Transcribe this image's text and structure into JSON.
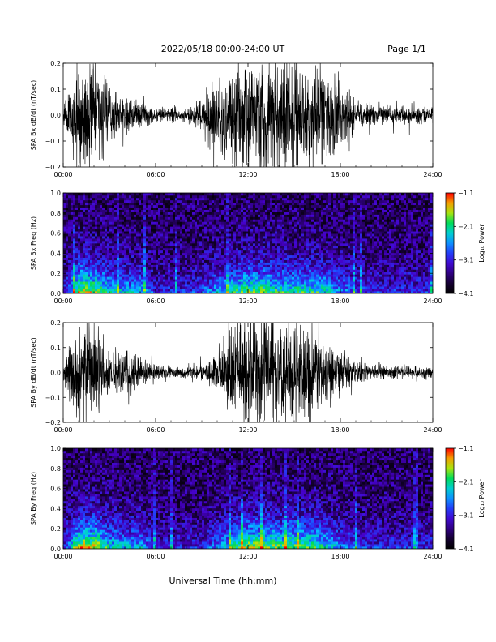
{
  "header": {
    "title": "2022/05/18  00:00-24:00 UT",
    "page": "Page 1/1"
  },
  "xaxis": {
    "label": "Universal Time (hh:mm)",
    "ticks": [
      "00:00",
      "06:00",
      "12:00",
      "18:00",
      "24:00"
    ]
  },
  "chart_data": [
    {
      "type": "line",
      "ylabel": "SPA Bx dB/dt (nT/sec)",
      "xlim": [
        0,
        24
      ],
      "ylim": [
        -0.2,
        0.2
      ],
      "yticks": [
        "0.2",
        "0.1",
        "0.0",
        "-0.1",
        "-0.2"
      ],
      "series": [
        {
          "x": [
            0,
            1,
            2,
            3,
            4,
            5,
            6,
            7,
            8,
            9,
            10,
            11,
            12,
            13,
            14,
            15,
            16,
            17,
            18,
            19,
            20,
            21,
            22,
            23,
            24
          ],
          "amplitude": [
            0.03,
            0.2,
            0.2,
            0.1,
            0.06,
            0.05,
            0.03,
            0.03,
            0.025,
            0.06,
            0.15,
            0.18,
            0.2,
            0.2,
            0.2,
            0.2,
            0.15,
            0.2,
            0.12,
            0.05,
            0.04,
            0.035,
            0.03,
            0.03,
            0.03
          ]
        }
      ]
    },
    {
      "type": "heatmap",
      "ylabel": "SPA Bx Freq (Hz)",
      "xlim": [
        0,
        24
      ],
      "ylim": [
        0,
        1.0
      ],
      "yticks": [
        "1.0",
        "0.8",
        "0.6",
        "0.4",
        "0.2",
        "0.0"
      ],
      "colorbar": {
        "label": "Log₁₀ Power",
        "ticks": [
          "-1.1",
          "-2.1",
          "-3.1",
          "-4.1"
        ],
        "range": [
          -4.1,
          -1.1
        ]
      },
      "activity": [
        0.15,
        0.55,
        0.5,
        0.35,
        0.3,
        0.3,
        0.15,
        0.15,
        0.15,
        0.2,
        0.3,
        0.4,
        0.45,
        0.45,
        0.4,
        0.4,
        0.4,
        0.35,
        0.25,
        0.2,
        0.15,
        0.15,
        0.15,
        0.15,
        0.15
      ]
    },
    {
      "type": "line",
      "ylabel": "SPA By dB/dt (nT/sec)",
      "xlim": [
        0,
        24
      ],
      "ylim": [
        -0.2,
        0.2
      ],
      "yticks": [
        "0.2",
        "0.1",
        "0.0",
        "-0.1",
        "-0.2"
      ],
      "series": [
        {
          "x": [
            0,
            1,
            2,
            3,
            4,
            5,
            6,
            7,
            8,
            9,
            10,
            11,
            12,
            13,
            14,
            15,
            16,
            17,
            18,
            19,
            20,
            21,
            22,
            23,
            24
          ],
          "amplitude": [
            0.03,
            0.2,
            0.18,
            0.08,
            0.08,
            0.06,
            0.03,
            0.02,
            0.02,
            0.03,
            0.06,
            0.2,
            0.2,
            0.2,
            0.2,
            0.2,
            0.18,
            0.12,
            0.08,
            0.05,
            0.03,
            0.03,
            0.025,
            0.025,
            0.02
          ]
        }
      ]
    },
    {
      "type": "heatmap",
      "ylabel": "SPA By Freq (Hz)",
      "xlim": [
        0,
        24
      ],
      "ylim": [
        0,
        1.0
      ],
      "yticks": [
        "1.0",
        "0.8",
        "0.6",
        "0.4",
        "0.2",
        "0.0"
      ],
      "colorbar": {
        "label": "Log₁₀ Power",
        "ticks": [
          "-1.1",
          "-2.1",
          "-3.1",
          "-4.1"
        ],
        "range": [
          -4.1,
          -1.1
        ]
      },
      "activity": [
        0.15,
        0.55,
        0.55,
        0.35,
        0.3,
        0.3,
        0.15,
        0.12,
        0.12,
        0.15,
        0.25,
        0.4,
        0.5,
        0.5,
        0.45,
        0.45,
        0.45,
        0.35,
        0.25,
        0.2,
        0.15,
        0.15,
        0.15,
        0.15,
        0.15
      ]
    }
  ]
}
